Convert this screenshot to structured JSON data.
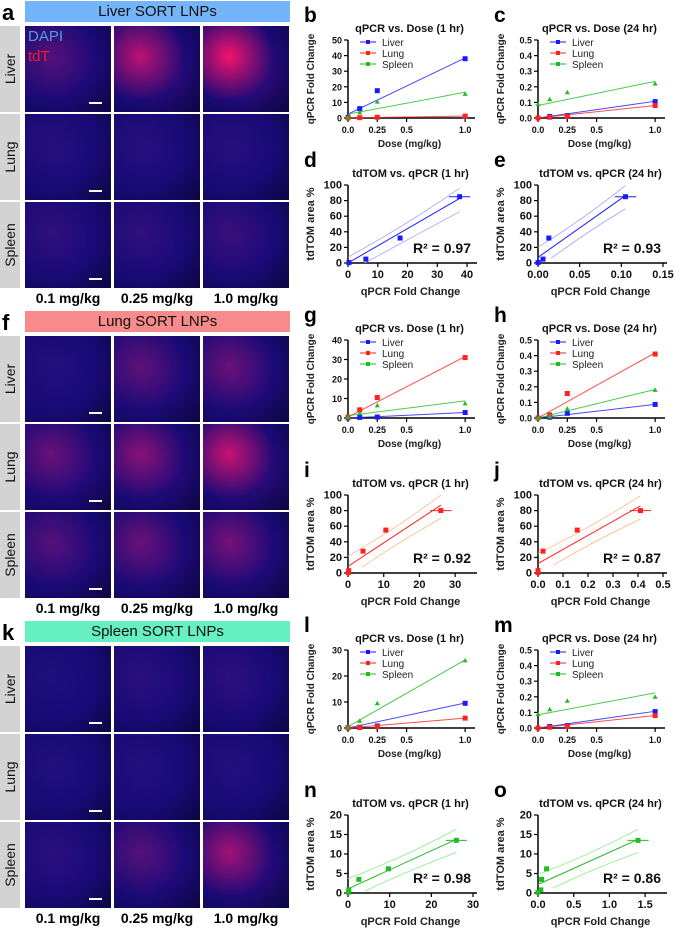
{
  "groups": [
    {
      "letter": "a",
      "title": "Liver SORT LNPs",
      "header_color": "#74b4fb",
      "stain_legend": {
        "dapi": "DAPI",
        "tdt": "tdT",
        "dapi_color": "#4aa0e8",
        "tdt_color": "#e8232a"
      },
      "rows": [
        "Liver",
        "Lung",
        "Spleen"
      ],
      "doses": [
        "0.1 mg/kg",
        "0.25 mg/kg",
        "1.0 mg/kg"
      ]
    },
    {
      "letter": "f",
      "title": "Lung SORT LNPs",
      "header_color": "#f78a8a",
      "rows": [
        "Liver",
        "Lung",
        "Spleen"
      ],
      "doses": [
        "0.1 mg/kg",
        "0.25 mg/kg",
        "1.0 mg/kg"
      ]
    },
    {
      "letter": "k",
      "title": "Spleen SORT LNPs",
      "header_color": "#66efc0",
      "rows": [
        "Liver",
        "Lung",
        "Spleen"
      ],
      "doses": [
        "0.1 mg/kg",
        "0.25 mg/kg",
        "1.0 mg/kg"
      ]
    }
  ],
  "colors": {
    "liver": "#1a1aff",
    "lung": "#ff2020",
    "spleen": "#22bb22"
  },
  "chart_data": [
    {
      "panel": "b",
      "type": "line",
      "title": "qPCR vs. Dose (1 hr)",
      "xlabel": "Dose (mg/kg)",
      "ylabel": "qPCR Fold Change",
      "x": [
        0,
        0.1,
        0.25,
        1.0
      ],
      "xticks": [
        "0.0",
        "0.25",
        "0.5",
        "1.0"
      ],
      "xtick_values": [
        0,
        0.25,
        0.5,
        1.0
      ],
      "ylim": [
        0,
        50
      ],
      "yticks": [
        0,
        10,
        20,
        30,
        40,
        50
      ],
      "series": [
        {
          "name": "Liver",
          "values": [
            0.5,
            6,
            17.5,
            38
          ],
          "fit": [
            2.5,
            38.5
          ]
        },
        {
          "name": "Lung",
          "values": [
            0.1,
            0.2,
            0.5,
            1.2
          ],
          "fit": [
            0.1,
            1.2
          ]
        },
        {
          "name": "Spleen",
          "values": [
            0.3,
            3.5,
            10.5,
            15.5
          ],
          "fit": [
            2.5,
            16.5
          ]
        }
      ]
    },
    {
      "panel": "c",
      "type": "line",
      "title": "qPCR vs. Dose (24 hr)",
      "xlabel": "Dose (mg/kg)",
      "ylabel": "qPCR Fold Change",
      "x": [
        0,
        0.1,
        0.25,
        1.0
      ],
      "xticks": [
        "0.0",
        "0.25",
        "0.5",
        "1.0"
      ],
      "xtick_values": [
        0,
        0.25,
        0.5,
        1.0
      ],
      "ylim": [
        0,
        0.5
      ],
      "yticks": [
        0.0,
        0.1,
        0.2,
        0.3,
        0.4,
        0.5
      ],
      "series": [
        {
          "name": "Liver",
          "values": [
            0.0,
            0.01,
            0.015,
            0.105
          ],
          "fit": [
            0.0,
            0.107
          ]
        },
        {
          "name": "Lung",
          "values": [
            0.0,
            0.005,
            0.01,
            0.08
          ],
          "fit": [
            0.0,
            0.08
          ]
        },
        {
          "name": "Spleen",
          "values": [
            0.09,
            0.12,
            0.165,
            0.22
          ],
          "fit": [
            0.08,
            0.235
          ]
        }
      ]
    },
    {
      "panel": "d",
      "type": "scatter",
      "title": "tdTOM vs. qPCR (1 hr)",
      "xlabel": "qPCR Fold Change",
      "ylabel": "tdTOM area %",
      "xlim": [
        0,
        42
      ],
      "xticks": [
        0,
        10,
        20,
        30,
        40
      ],
      "ylim": [
        0,
        100
      ],
      "yticks": [
        0,
        20,
        40,
        60,
        80,
        100
      ],
      "points": [
        {
          "x": 0.3,
          "y": 0.5
        },
        {
          "x": 6,
          "y": 5
        },
        {
          "x": 17.5,
          "y": 32
        },
        {
          "x": 37.5,
          "y": 85
        }
      ],
      "r2": "0.97",
      "series_color": "liver"
    },
    {
      "panel": "e",
      "type": "scatter",
      "title": "tdTOM vs. qPCR (24 hr)",
      "xlabel": "qPCR Fold Change",
      "ylabel": "tdTOM area %",
      "xlim": [
        0,
        0.15
      ],
      "xticks": [
        0.0,
        0.05,
        0.1,
        0.15
      ],
      "ylim": [
        0,
        100
      ],
      "yticks": [
        0,
        20,
        40,
        60,
        80,
        100
      ],
      "points": [
        {
          "x": 0.0,
          "y": 0.5
        },
        {
          "x": 0.006,
          "y": 5
        },
        {
          "x": 0.013,
          "y": 32
        },
        {
          "x": 0.105,
          "y": 85
        }
      ],
      "r2": "0.93",
      "series_color": "liver"
    },
    {
      "panel": "g",
      "type": "line",
      "title": "qPCR vs. Dose (1 hr)",
      "xlabel": "Dose (mg/kg)",
      "ylabel": "qPCR Fold Change",
      "x": [
        0,
        0.1,
        0.25,
        1.0
      ],
      "xticks": [
        "0.0",
        "0.25",
        "0.5",
        "1.0"
      ],
      "xtick_values": [
        0,
        0.25,
        0.5,
        1.0
      ],
      "ylim": [
        0,
        40
      ],
      "yticks": [
        0,
        10,
        20,
        30,
        40
      ],
      "series": [
        {
          "name": "Liver",
          "values": [
            0.1,
            0.3,
            0.5,
            2.8
          ],
          "fit": [
            0.0,
            2.8
          ]
        },
        {
          "name": "Lung",
          "values": [
            0.5,
            4.2,
            10.5,
            31
          ],
          "fit": [
            0.5,
            31.5
          ]
        },
        {
          "name": "Spleen",
          "values": [
            0.3,
            2.5,
            6.5,
            7.5
          ],
          "fit": [
            1.2,
            8.8
          ]
        }
      ]
    },
    {
      "panel": "h",
      "type": "line",
      "title": "qPCR vs. Dose (24 hr)",
      "xlabel": "Dose (mg/kg)",
      "ylabel": "qPCR Fold Change",
      "x": [
        0,
        0.1,
        0.25,
        1.0
      ],
      "xticks": [
        "0.0",
        "0.25",
        "0.5",
        "1.0"
      ],
      "xtick_values": [
        0,
        0.25,
        0.5,
        1.0
      ],
      "ylim": [
        0,
        0.5
      ],
      "yticks": [
        0.0,
        0.1,
        0.2,
        0.3,
        0.4,
        0.5
      ],
      "series": [
        {
          "name": "Liver",
          "values": [
            0.0,
            0.005,
            0.03,
            0.087
          ],
          "fit": [
            0.0,
            0.087
          ]
        },
        {
          "name": "Lung",
          "values": [
            0.0,
            0.02,
            0.157,
            0.41
          ],
          "fit": [
            0.0,
            0.418
          ]
        },
        {
          "name": "Spleen",
          "values": [
            0.0,
            0.01,
            0.06,
            0.18
          ],
          "fit": [
            0.0,
            0.183
          ]
        }
      ]
    },
    {
      "panel": "i",
      "type": "scatter",
      "title": "tdTOM vs. qPCR (1 hr)",
      "xlabel": "qPCR Fold Change",
      "ylabel": "tdTOM area %",
      "xlim": [
        0,
        35
      ],
      "xticks": [
        0,
        10,
        20,
        30
      ],
      "ylim": [
        0,
        100
      ],
      "yticks": [
        0,
        20,
        40,
        60,
        80,
        100
      ],
      "points": [
        {
          "x": 0.1,
          "y": 0.5
        },
        {
          "x": 0.2,
          "y": 3
        },
        {
          "x": 4.2,
          "y": 28
        },
        {
          "x": 10.6,
          "y": 55
        },
        {
          "x": 26,
          "y": 80
        }
      ],
      "r2": "0.92",
      "series_color": "lung"
    },
    {
      "panel": "j",
      "type": "scatter",
      "title": "tdTOM vs. qPCR (24 hr)",
      "xlabel": "qPCR Fold Change",
      "ylabel": "tdTOM area %",
      "xlim": [
        0,
        0.5
      ],
      "xticks": [
        0.0,
        0.1,
        0.2,
        0.3,
        0.4,
        0.5
      ],
      "ylim": [
        0,
        100
      ],
      "yticks": [
        0,
        20,
        40,
        60,
        80,
        100
      ],
      "points": [
        {
          "x": 0.0,
          "y": 0.5
        },
        {
          "x": 0.0,
          "y": 3
        },
        {
          "x": 0.02,
          "y": 28
        },
        {
          "x": 0.157,
          "y": 55
        },
        {
          "x": 0.41,
          "y": 80
        }
      ],
      "r2": "0.87",
      "series_color": "lung"
    },
    {
      "panel": "l",
      "type": "line",
      "title": "qPCR vs. Dose (1 hr)",
      "xlabel": "Dose (mg/kg)",
      "ylabel": "qPCR Fold Change",
      "x": [
        0,
        0.1,
        0.25,
        1.0
      ],
      "xticks": [
        "0.0",
        "0.25",
        "0.5",
        "1.0"
      ],
      "xtick_values": [
        0,
        0.25,
        0.5,
        1.0
      ],
      "ylim": [
        0,
        30
      ],
      "yticks": [
        0,
        10,
        20,
        30
      ],
      "series": [
        {
          "name": "Liver",
          "values": [
            0.1,
            0.3,
            0.8,
            9.5
          ],
          "fit": [
            0.0,
            9.6
          ]
        },
        {
          "name": "Lung",
          "values": [
            0.1,
            0.2,
            0.5,
            3.8
          ],
          "fit": [
            0.0,
            3.8
          ]
        },
        {
          "name": "Spleen",
          "values": [
            0.3,
            2.8,
            9.5,
            26
          ],
          "fit": [
            0.5,
            26.2
          ]
        }
      ]
    },
    {
      "panel": "m",
      "type": "line",
      "title": "qPCR vs. Dose (24 hr)",
      "xlabel": "Dose (mg/kg)",
      "ylabel": "qPCR Fold Change",
      "x": [
        0,
        0.1,
        0.25,
        1.0
      ],
      "xticks": [
        "0.0",
        "0.25",
        "0.5",
        "1.0"
      ],
      "xtick_values": [
        0,
        0.25,
        0.5,
        1.0
      ],
      "ylim": [
        0,
        0.5
      ],
      "yticks": [
        0.0,
        0.1,
        0.2,
        0.3,
        0.4,
        0.5
      ],
      "series": [
        {
          "name": "Liver",
          "values": [
            0.0,
            0.01,
            0.015,
            0.105
          ],
          "fit": [
            0.0,
            0.107
          ]
        },
        {
          "name": "Lung",
          "values": [
            0.0,
            0.005,
            0.01,
            0.08
          ],
          "fit": [
            0.0,
            0.08
          ]
        },
        {
          "name": "Spleen",
          "values": [
            0.09,
            0.12,
            0.175,
            0.2
          ],
          "fit": [
            0.085,
            0.225
          ]
        }
      ]
    },
    {
      "panel": "n",
      "type": "scatter",
      "title": "tdTOM vs. qPCR (1 hr)",
      "xlabel": "qPCR Fold Change",
      "ylabel": "tdTOM area %",
      "xlim": [
        0,
        30
      ],
      "xticks": [
        0,
        10,
        20,
        30
      ],
      "ylim": [
        0,
        20
      ],
      "yticks": [
        0,
        5,
        10,
        15,
        20
      ],
      "points": [
        {
          "x": 0.1,
          "y": 0.2
        },
        {
          "x": 0.2,
          "y": 0.8
        },
        {
          "x": 2.6,
          "y": 3.5
        },
        {
          "x": 9.7,
          "y": 6.2
        },
        {
          "x": 26,
          "y": 13.5
        }
      ],
      "r2": "0.98",
      "series_color": "spleen"
    },
    {
      "panel": "o",
      "type": "scatter",
      "title": "tdTOM vs. qPCR (24 hr)",
      "xlabel": "qPCR Fold Change",
      "ylabel": "tdTOM area %",
      "xlim": [
        0,
        1.75
      ],
      "xticks": [
        0.0,
        0.5,
        1.0,
        1.5
      ],
      "ylim": [
        0,
        20
      ],
      "yticks": [
        0,
        5,
        10,
        15,
        20
      ],
      "points": [
        {
          "x": 0.0,
          "y": 0.2
        },
        {
          "x": 0.04,
          "y": 0.8
        },
        {
          "x": 0.05,
          "y": 3.5
        },
        {
          "x": 0.12,
          "y": 6.2
        },
        {
          "x": 1.4,
          "y": 13.5
        }
      ],
      "r2": "0.86",
      "series_color": "spleen"
    }
  ]
}
